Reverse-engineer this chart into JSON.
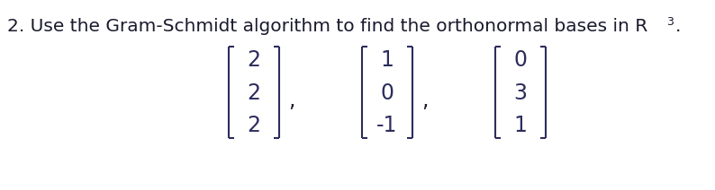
{
  "background_color": "#ffffff",
  "text_color": "#1a1a2e",
  "title": "2. Use the Gram-Schmidt algorithm to find the orthonormal bases in R",
  "superscript": "3",
  "vectors": [
    [
      "2",
      "2",
      "2"
    ],
    [
      "1",
      "0",
      "-1"
    ],
    [
      "0",
      "3",
      "1"
    ]
  ],
  "figsize": [
    7.94,
    2.12
  ],
  "dpi": 100,
  "title_fontsize": 14.5,
  "num_fontsize": 17,
  "num_color": "#2c2c5e"
}
